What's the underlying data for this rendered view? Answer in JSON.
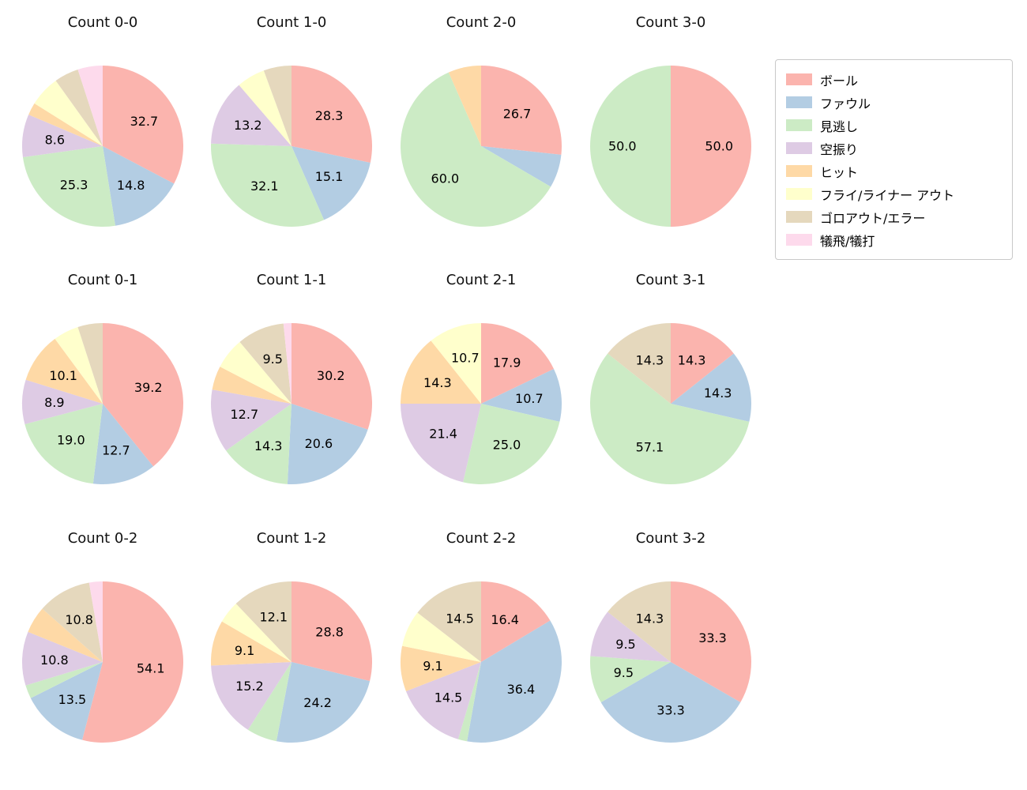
{
  "legend": {
    "items": [
      {
        "key": "ball",
        "label": "ボール",
        "color": "#fbb4ae"
      },
      {
        "key": "foul",
        "label": "ファウル",
        "color": "#b3cde3"
      },
      {
        "key": "called-strike",
        "label": "見逃し",
        "color": "#ccebc5"
      },
      {
        "key": "swinging-strike",
        "label": "空振り",
        "color": "#decbe4"
      },
      {
        "key": "hit",
        "label": "ヒット",
        "color": "#fed9a6"
      },
      {
        "key": "fly-liner-out",
        "label": "フライ/ライナー アウト",
        "color": "#ffffcc"
      },
      {
        "key": "ground-out-error",
        "label": "ゴロアウト/エラー",
        "color": "#e5d8bd"
      },
      {
        "key": "sacrifice",
        "label": "犠飛/犠打",
        "color": "#fddaec"
      }
    ]
  },
  "chart_data": {
    "type": "pie",
    "start_angle": 90,
    "direction": "clockwise",
    "label_min_pct": 8,
    "value_format": "percent_one_decimal",
    "legend_position": "upper right",
    "grid": {
      "rows": 3,
      "cols": 4
    },
    "categories": [
      "ボール",
      "ファウル",
      "見逃し",
      "空振り",
      "ヒット",
      "フライ/ライナー アウト",
      "ゴロアウト/エラー",
      "犠飛/犠打"
    ],
    "charts": [
      {
        "title": "Count 0-0",
        "slices": [
          {
            "category": "ボール",
            "value": 32.7
          },
          {
            "category": "ファウル",
            "value": 14.8
          },
          {
            "category": "見逃し",
            "value": 25.3
          },
          {
            "category": "空振り",
            "value": 8.6
          },
          {
            "category": "ヒット",
            "value": 2.5
          },
          {
            "category": "フライ/ライナー アウト",
            "value": 6.2
          },
          {
            "category": "ゴロアウト/エラー",
            "value": 4.9
          },
          {
            "category": "犠飛/犠打",
            "value": 5.0
          }
        ]
      },
      {
        "title": "Count 1-0",
        "slices": [
          {
            "category": "ボール",
            "value": 28.3
          },
          {
            "category": "ファウル",
            "value": 15.1
          },
          {
            "category": "見逃し",
            "value": 32.1
          },
          {
            "category": "空振り",
            "value": 13.2
          },
          {
            "category": "フライ/ライナー アウト",
            "value": 5.7
          },
          {
            "category": "ゴロアウト/エラー",
            "value": 5.6
          }
        ]
      },
      {
        "title": "Count 2-0",
        "slices": [
          {
            "category": "ボール",
            "value": 26.7
          },
          {
            "category": "ファウル",
            "value": 6.7
          },
          {
            "category": "見逃し",
            "value": 60.0
          },
          {
            "category": "ヒット",
            "value": 6.6
          }
        ]
      },
      {
        "title": "Count 3-0",
        "slices": [
          {
            "category": "ボール",
            "value": 50.0
          },
          {
            "category": "見逃し",
            "value": 50.0
          }
        ]
      },
      {
        "title": "Count 0-1",
        "slices": [
          {
            "category": "ボール",
            "value": 39.2
          },
          {
            "category": "ファウル",
            "value": 12.7
          },
          {
            "category": "見逃し",
            "value": 19.0
          },
          {
            "category": "空振り",
            "value": 8.9
          },
          {
            "category": "ヒット",
            "value": 10.1
          },
          {
            "category": "フライ/ライナー アウト",
            "value": 5.1
          },
          {
            "category": "ゴロアウト/エラー",
            "value": 5.0
          }
        ]
      },
      {
        "title": "Count 1-1",
        "slices": [
          {
            "category": "ボール",
            "value": 30.2
          },
          {
            "category": "ファウル",
            "value": 20.6
          },
          {
            "category": "見逃し",
            "value": 14.3
          },
          {
            "category": "空振り",
            "value": 12.7
          },
          {
            "category": "ヒット",
            "value": 4.8
          },
          {
            "category": "フライ/ライナー アウト",
            "value": 6.3
          },
          {
            "category": "ゴロアウト/エラー",
            "value": 9.5
          },
          {
            "category": "犠飛/犠打",
            "value": 1.6
          }
        ]
      },
      {
        "title": "Count 2-1",
        "slices": [
          {
            "category": "ボール",
            "value": 17.9
          },
          {
            "category": "ファウル",
            "value": 10.7
          },
          {
            "category": "見逃し",
            "value": 25.0
          },
          {
            "category": "空振り",
            "value": 21.4
          },
          {
            "category": "ヒット",
            "value": 14.3
          },
          {
            "category": "フライ/ライナー アウト",
            "value": 10.7
          }
        ]
      },
      {
        "title": "Count 3-1",
        "slices": [
          {
            "category": "ボール",
            "value": 14.3
          },
          {
            "category": "ファウル",
            "value": 14.3
          },
          {
            "category": "見逃し",
            "value": 57.1
          },
          {
            "category": "ゴロアウト/エラー",
            "value": 14.3
          }
        ]
      },
      {
        "title": "Count 0-2",
        "slices": [
          {
            "category": "ボール",
            "value": 54.1
          },
          {
            "category": "ファウル",
            "value": 13.5
          },
          {
            "category": "見逃し",
            "value": 2.7
          },
          {
            "category": "空振り",
            "value": 10.8
          },
          {
            "category": "ヒット",
            "value": 5.4
          },
          {
            "category": "ゴロアウト/エラー",
            "value": 10.8
          },
          {
            "category": "犠飛/犠打",
            "value": 2.7
          }
        ]
      },
      {
        "title": "Count 1-2",
        "slices": [
          {
            "category": "ボール",
            "value": 28.8
          },
          {
            "category": "ファウル",
            "value": 24.2
          },
          {
            "category": "見逃し",
            "value": 6.1
          },
          {
            "category": "空振り",
            "value": 15.2
          },
          {
            "category": "ヒット",
            "value": 9.1
          },
          {
            "category": "フライ/ライナー アウト",
            "value": 4.5
          },
          {
            "category": "ゴロアウト/エラー",
            "value": 12.1
          }
        ]
      },
      {
        "title": "Count 2-2",
        "slices": [
          {
            "category": "ボール",
            "value": 16.4
          },
          {
            "category": "ファウル",
            "value": 36.4
          },
          {
            "category": "見逃し",
            "value": 1.8
          },
          {
            "category": "空振り",
            "value": 14.5
          },
          {
            "category": "ヒット",
            "value": 9.1
          },
          {
            "category": "フライ/ライナー アウト",
            "value": 7.3
          },
          {
            "category": "ゴロアウト/エラー",
            "value": 14.5
          }
        ]
      },
      {
        "title": "Count 3-2",
        "slices": [
          {
            "category": "ボール",
            "value": 33.3
          },
          {
            "category": "ファウル",
            "value": 33.3
          },
          {
            "category": "見逃し",
            "value": 9.5
          },
          {
            "category": "空振り",
            "value": 9.5
          },
          {
            "category": "ゴロアウト/エラー",
            "value": 14.3
          }
        ]
      }
    ]
  }
}
